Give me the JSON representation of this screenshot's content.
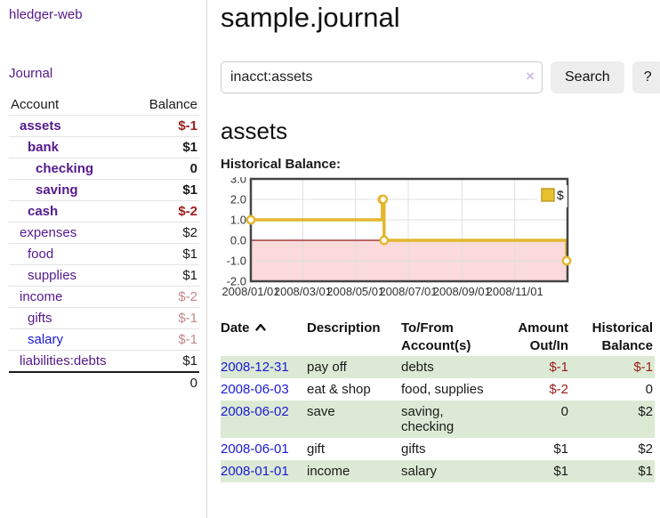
{
  "colors": {
    "link_purple": "#551a8b",
    "link_blue": "#1a1ad6",
    "negative_strong": "#9b1c1c",
    "negative_dim": "#c4898b",
    "row_stripe_green": "#dcead5",
    "chart_line_gold": "#e3b72e",
    "chart_fill_pink": "#fadada",
    "chart_zero_red": "#8f1a1a",
    "chart_border": "#454545",
    "chart_grid": "#e0e0e0"
  },
  "sidebar": {
    "brand": "hledger-web",
    "nav_journal": "Journal",
    "accounts_table": {
      "account_header": "Account",
      "balance_header": "Balance",
      "rows": [
        {
          "account": "assets",
          "level": 0,
          "bold": true,
          "balance": "$-1",
          "balance_style": "neg-strong"
        },
        {
          "account": "bank",
          "level": 1,
          "bold": true,
          "balance": "$1",
          "balance_style": "pos-strong"
        },
        {
          "account": "checking",
          "level": 2,
          "bold": true,
          "balance": "0",
          "balance_style": "pos-strong"
        },
        {
          "account": "saving",
          "level": 2,
          "bold": true,
          "balance": "$1",
          "balance_style": "pos-strong"
        },
        {
          "account": "cash",
          "level": 1,
          "bold": true,
          "balance": "$-2",
          "balance_style": "neg-strong"
        },
        {
          "account": "expenses",
          "level": 0,
          "bold": false,
          "balance": "$2",
          "balance_style": "pos"
        },
        {
          "account": "food",
          "level": 1,
          "bold": false,
          "balance": "$1",
          "balance_style": "pos"
        },
        {
          "account": "supplies",
          "level": 1,
          "bold": false,
          "balance": "$1",
          "balance_style": "pos"
        },
        {
          "account": "income",
          "level": 0,
          "bold": false,
          "balance": "$-2",
          "balance_style": "neg-dim"
        },
        {
          "account": "gifts",
          "level": 1,
          "bold": false,
          "balance": "$-1",
          "balance_style": "neg-dim"
        },
        {
          "account": "salary",
          "level": 1,
          "bold": false,
          "balance": "$-1",
          "balance_style": "neg-dim",
          "link_color": "blue"
        },
        {
          "account": "liabilities:debts",
          "level": 0,
          "bold": false,
          "balance": "$1",
          "balance_style": "pos"
        }
      ],
      "total": "0"
    }
  },
  "main": {
    "title": "sample.journal",
    "search": {
      "value": "inacct:assets",
      "clear_icon": "×",
      "search_button": "Search",
      "help_button": "?"
    },
    "account_heading": "assets",
    "chart_title": "Historical Balance:"
  },
  "chart_data": {
    "type": "line",
    "style": "step-after",
    "title": "Historical Balance",
    "series": [
      {
        "name": "$",
        "points": [
          [
            "2008-01-01",
            1
          ],
          [
            "2008-06-01",
            2
          ],
          [
            "2008-06-02",
            2
          ],
          [
            "2008-06-03",
            0
          ],
          [
            "2008-12-31",
            -1
          ]
        ]
      }
    ],
    "x_range": [
      "2008-01-01",
      "2009-01-01"
    ],
    "x_ticks": [
      "2008/01/01",
      "2008/03/01",
      "2008/05/01",
      "2008/07/01",
      "2008/09/01",
      "2008/11/01"
    ],
    "y_ticks": [
      3.0,
      2.0,
      1.0,
      0.0,
      -1.0,
      -2.0
    ],
    "ylim": [
      -2,
      3
    ],
    "legend": {
      "label": "$",
      "position": "top-right"
    },
    "grid": true,
    "negative_region_shaded": true,
    "zero_line": true
  },
  "register": {
    "headers": {
      "date": "Date",
      "description": "Description",
      "tofrom": "To/From Account(s)",
      "amount": "Amount Out/In",
      "balance": "Historical Balance"
    },
    "sort": {
      "column": "date",
      "direction": "ascending",
      "icon": "chevron-up"
    },
    "rows": [
      {
        "date": "2008-12-31",
        "description": "pay off",
        "accounts": "debts",
        "amount": "$-1",
        "amount_neg": true,
        "balance": "$-1",
        "balance_neg": true,
        "stripe": true
      },
      {
        "date": "2008-06-03",
        "description": "eat & shop",
        "accounts": "food, supplies",
        "amount": "$-2",
        "amount_neg": true,
        "balance": "0",
        "balance_neg": false,
        "stripe": false
      },
      {
        "date": "2008-06-02",
        "description": "save",
        "accounts": "saving, checking",
        "amount": "0",
        "amount_neg": false,
        "balance": "$2",
        "balance_neg": false,
        "stripe": true
      },
      {
        "date": "2008-06-01",
        "description": "gift",
        "accounts": "gifts",
        "amount": "$1",
        "amount_neg": false,
        "balance": "$2",
        "balance_neg": false,
        "stripe": false
      },
      {
        "date": "2008-01-01",
        "description": "income",
        "accounts": "salary",
        "amount": "$1",
        "amount_neg": false,
        "balance": "$1",
        "balance_neg": false,
        "stripe": true
      }
    ]
  }
}
